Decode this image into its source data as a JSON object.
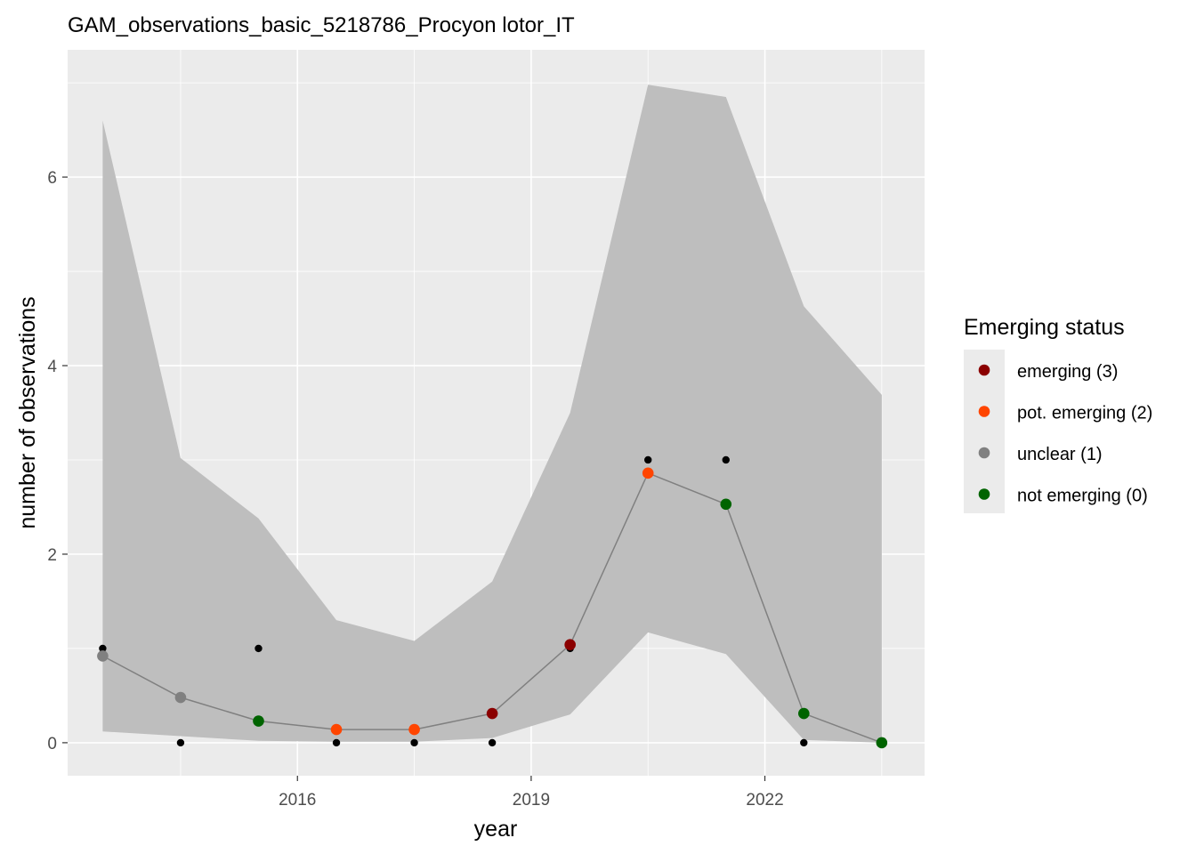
{
  "chart_data": {
    "type": "line",
    "title": "GAM_observations_basic_5218786_Procyon lotor_IT",
    "xlabel": "year",
    "ylabel": "number of observations",
    "xlim": [
      2013.05,
      2024.05
    ],
    "ylim": [
      -0.35,
      7.35
    ],
    "x_ticks": [
      2016,
      2019,
      2022
    ],
    "y_ticks": [
      0,
      2,
      4,
      6
    ],
    "grid": true,
    "years": [
      2013.5,
      2014.5,
      2015.5,
      2016.5,
      2017.5,
      2018.5,
      2019.5,
      2020.5,
      2021.5,
      2022.5,
      2023.5
    ],
    "observed": [
      1,
      0,
      1,
      0,
      0,
      0,
      1,
      3,
      3,
      0,
      0
    ],
    "fitted": [
      0.92,
      0.48,
      0.23,
      0.14,
      0.14,
      0.31,
      1.04,
      2.86,
      2.53,
      0.31,
      0.0
    ],
    "lower": [
      0.12,
      0.07,
      0.02,
      0.01,
      0.01,
      0.05,
      0.3,
      1.17,
      0.94,
      0.03,
      0.0
    ],
    "upper": [
      6.6,
      3.02,
      2.38,
      1.3,
      1.08,
      1.71,
      3.5,
      6.98,
      6.85,
      4.63,
      3.69
    ],
    "status": [
      1,
      1,
      0,
      2,
      2,
      3,
      3,
      2,
      0,
      0,
      0
    ],
    "legend": {
      "title": "Emerging status",
      "position": "right",
      "entries": [
        {
          "code": 3,
          "label": "emerging (3)",
          "color": "#8b0000"
        },
        {
          "code": 2,
          "label": "pot. emerging (2)",
          "color": "#ff4500"
        },
        {
          "code": 1,
          "label": "unclear (1)",
          "color": "#808080"
        },
        {
          "code": 0,
          "label": "not emerging (0)",
          "color": "#006400"
        }
      ]
    },
    "colors": {
      "panel": "#ebebeb",
      "grid": "#ffffff",
      "ribbon": "#bebebe",
      "line": "#808080",
      "observed_point": "#000000"
    }
  }
}
